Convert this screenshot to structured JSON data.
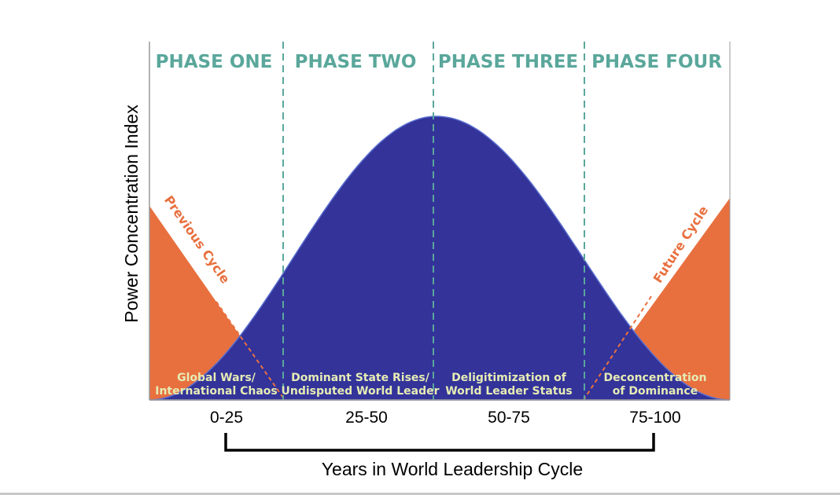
{
  "diagram": {
    "y_axis_label": "Power Concentration Index",
    "x_axis_label": "Years in World Leadership Cycle",
    "phases": [
      {
        "title": "PHASE ONE",
        "desc_line1": "Global Wars/",
        "desc_line2": "International Chaos",
        "range": "0-25"
      },
      {
        "title": "PHASE TWO",
        "desc_line1": "Dominant State Rises/",
        "desc_line2": "Undisputed World Leader",
        "range": "25-50"
      },
      {
        "title": "PHASE THREE",
        "desc_line1": "Deligitimization of",
        "desc_line2": "World Leader Status",
        "range": "50-75"
      },
      {
        "title": "PHASE FOUR",
        "desc_line1": "Deconcentration",
        "desc_line2": "of Dominance",
        "range": "75-100"
      }
    ],
    "previous_cycle_label": "Previous Cycle",
    "future_cycle_label": "Future Cycle",
    "colors": {
      "curve_fill": "#33339a",
      "cycle_fill": "#e8703f",
      "phase_title": "#5aa79b",
      "phase_desc": "#e6ecb4",
      "cycle_label": "#e8703f",
      "divider": "#5aa79b",
      "bracket": "#000000"
    }
  }
}
